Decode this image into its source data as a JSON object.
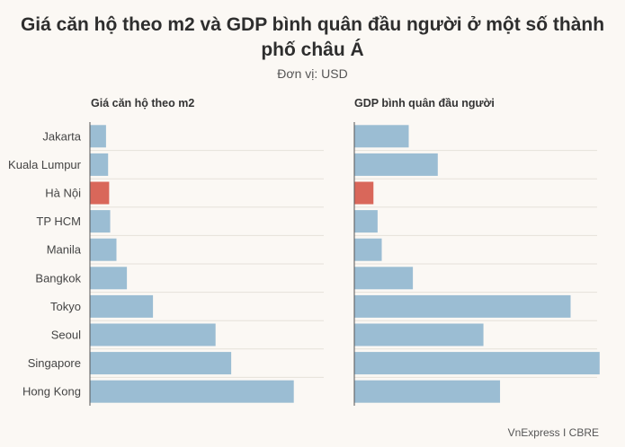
{
  "title": "Giá căn hộ theo m2 và GDP bình quân đầu người ở một số thành phố châu Á",
  "title_lines": [
    "Giá căn hộ theo m2 và GDP bình quân đầu người ở một số thành",
    "phố châu Á"
  ],
  "subtitle": "Đơn vị: USD",
  "source": "VnExpress I CBRE",
  "colors": {
    "bar": "#9bbdd3",
    "highlight": "#d9675a",
    "axis": "#555555",
    "grid": "#e6e1da"
  },
  "chart_data": {
    "type": "bar",
    "orientation": "horizontal",
    "categories": [
      "Jakarta",
      "Kuala Lumpur",
      "Hà Nội",
      "TP HCM",
      "Manila",
      "Bangkok",
      "Tokyo",
      "Seoul",
      "Singapore",
      "Hong Kong"
    ],
    "highlight": "Hà Nội",
    "series": [
      {
        "name": "Giá căn hộ theo m2",
        "values": [
          1500,
          1700,
          1800,
          1900,
          2500,
          3500,
          6000,
          12000,
          13500,
          19500
        ],
        "xlim": [
          0,
          25000
        ]
      },
      {
        "name": "GDP bình quân đầu người",
        "values": [
          13000,
          20000,
          4500,
          5500,
          6500,
          14000,
          52000,
          31000,
          59000,
          35000
        ],
        "xlim": [
          0,
          65000
        ]
      }
    ],
    "grid": true,
    "legend": "none"
  }
}
